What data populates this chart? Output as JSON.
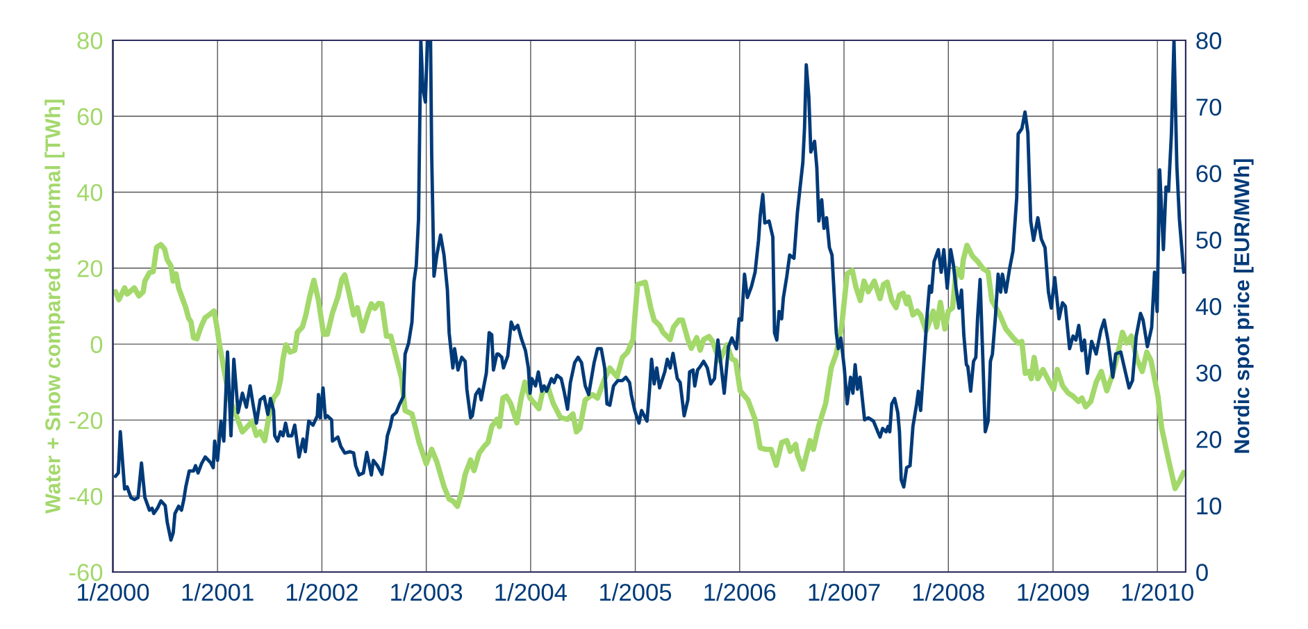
{
  "chart_data": {
    "type": "line",
    "ylabel": "Water + Snow compared to normal [TWh]",
    "y2label": "Nordic spot price [EUR/MWh]",
    "xlim": [
      "2000-01-01",
      "2010-04-10"
    ],
    "xticks": [
      {
        "value": "2000-01-01",
        "label": "1/2000"
      },
      {
        "value": "2001-01-01",
        "label": "1/2001"
      },
      {
        "value": "2002-01-01",
        "label": "1/2002"
      },
      {
        "value": "2003-01-01",
        "label": "1/2003"
      },
      {
        "value": "2004-01-01",
        "label": "1/2004"
      },
      {
        "value": "2005-01-01",
        "label": "1/2005"
      },
      {
        "value": "2006-01-01",
        "label": "1/2006"
      },
      {
        "value": "2007-01-01",
        "label": "1/2007"
      },
      {
        "value": "2008-01-01",
        "label": "1/2008"
      },
      {
        "value": "2009-01-01",
        "label": "1/2009"
      },
      {
        "value": "2010-01-01",
        "label": "1/2010"
      }
    ],
    "ylim": [
      -60,
      80
    ],
    "yticks": [
      -60,
      -40,
      -20,
      0,
      20,
      40,
      60,
      80
    ],
    "y2lim": [
      0,
      80
    ],
    "y2ticks": [
      0,
      10,
      20,
      30,
      40,
      50,
      60,
      70,
      80
    ],
    "grid": true,
    "series": [
      {
        "color": "#a3d86b",
        "axis": "y",
        "x": [
          "2000-01-10",
          "2000-01-22",
          "2000-02-11",
          "2000-02-20",
          "2000-03-16",
          "2000-04-01",
          "2000-04-16",
          "2000-04-22",
          "2000-05-08",
          "2000-05-21",
          "2000-06-02",
          "2000-06-17",
          "2000-06-30",
          "2000-07-09",
          "2000-07-22",
          "2000-07-30",
          "2000-08-09",
          "2000-08-18",
          "2000-09-12",
          "2000-09-22",
          "2000-09-30",
          "2000-10-09",
          "2000-10-21",
          "2000-11-06",
          "2000-11-19",
          "2000-12-01",
          "2000-12-20",
          "2000-12-29",
          "2001-01-07",
          "2001-01-26",
          "2001-02-13",
          "2001-03-10",
          "2001-03-29",
          "2001-04-16",
          "2001-05-02",
          "2001-05-17",
          "2001-05-30",
          "2001-06-15",
          "2001-06-30",
          "2001-07-16",
          "2001-07-30",
          "2001-08-09",
          "2001-08-18",
          "2001-08-28",
          "2001-09-12",
          "2001-09-28",
          "2001-10-07",
          "2001-10-25",
          "2001-11-06",
          "2001-11-19",
          "2001-12-04",
          "2001-12-20",
          "2002-01-07",
          "2002-01-20",
          "2002-02-07",
          "2002-02-26",
          "2002-03-12",
          "2002-03-22",
          "2002-04-06",
          "2002-04-22",
          "2002-05-05",
          "2002-05-23",
          "2002-06-11",
          "2002-06-23",
          "2002-07-05",
          "2002-07-18",
          "2002-07-30",
          "2002-08-15",
          "2002-08-30",
          "2002-09-18",
          "2002-10-07",
          "2002-10-19",
          "2002-11-12",
          "2002-12-07",
          "2003-01-01",
          "2003-01-20",
          "2003-02-07",
          "2003-03-04",
          "2003-03-22",
          "2003-04-04",
          "2003-04-20",
          "2003-05-05",
          "2003-05-17",
          "2003-06-05",
          "2003-06-17",
          "2003-07-05",
          "2003-07-24",
          "2003-08-05",
          "2003-08-18",
          "2003-09-05",
          "2003-09-14",
          "2003-09-26",
          "2003-10-08",
          "2003-10-23",
          "2003-11-14",
          "2003-11-29",
          "2003-12-12",
          "2003-12-30",
          "2004-01-30",
          "2004-02-11",
          "2004-03-02",
          "2004-03-20",
          "2004-04-14",
          "2004-05-09",
          "2004-05-28",
          "2004-06-09",
          "2004-06-21",
          "2004-07-10",
          "2004-08-04",
          "2004-08-22",
          "2004-09-16",
          "2004-10-04",
          "2004-10-29",
          "2004-11-17",
          "2004-12-05",
          "2004-12-24",
          "2005-01-09",
          "2005-02-05",
          "2005-02-24",
          "2005-03-08",
          "2005-03-27",
          "2005-04-08",
          "2005-05-03",
          "2005-05-15",
          "2005-06-03",
          "2005-06-15",
          "2005-07-04",
          "2005-07-16",
          "2005-08-04",
          "2005-08-16",
          "2005-08-28",
          "2005-09-16",
          "2005-09-28",
          "2005-10-23",
          "2005-11-17",
          "2005-12-05",
          "2005-12-18",
          "2006-01-03",
          "2006-01-30",
          "2006-02-24",
          "2006-03-14",
          "2006-04-02",
          "2006-04-21",
          "2006-05-09",
          "2006-05-28",
          "2006-06-15",
          "2006-06-27",
          "2006-07-16",
          "2006-07-22",
          "2006-08-10",
          "2006-09-04",
          "2006-09-16",
          "2006-10-04",
          "2006-10-29",
          "2006-11-17",
          "2006-12-05",
          "2006-12-24",
          "2007-01-12",
          "2007-01-30",
          "2007-02-11",
          "2007-02-27",
          "2007-03-12",
          "2007-03-27",
          "2007-04-17",
          "2007-05-07",
          "2007-05-19",
          "2007-06-01",
          "2007-06-17",
          "2007-07-02",
          "2007-07-14",
          "2007-07-27",
          "2007-08-08",
          "2007-08-14",
          "2007-08-30",
          "2007-09-14",
          "2007-09-26",
          "2007-10-15",
          "2007-10-27",
          "2007-11-09",
          "2007-11-21",
          "2007-12-04",
          "2007-12-20",
          "2008-01-01",
          "2008-01-16",
          "2008-01-28",
          "2008-02-16",
          "2008-02-22",
          "2008-03-06",
          "2008-03-25",
          "2008-04-12",
          "2008-05-01",
          "2008-05-19",
          "2008-06-01",
          "2008-06-26",
          "2008-07-20",
          "2008-08-14",
          "2008-09-01",
          "2008-09-14",
          "2008-09-26",
          "2008-10-09",
          "2008-10-17",
          "2008-10-27",
          "2008-11-09",
          "2008-11-27",
          "2008-12-16",
          "2009-01-03",
          "2009-01-16",
          "2009-02-03",
          "2009-02-22",
          "2009-03-12",
          "2009-03-31",
          "2009-04-12",
          "2009-04-25",
          "2009-05-13",
          "2009-06-01",
          "2009-06-19",
          "2009-07-08",
          "2009-07-27",
          "2009-08-14",
          "2009-09-01",
          "2009-09-16",
          "2009-10-02",
          "2009-10-21",
          "2009-11-09",
          "2009-11-25",
          "2009-12-10",
          "2010-01-03",
          "2010-01-16",
          "2010-02-09",
          "2010-03-04",
          "2010-03-19",
          "2010-04-03"
        ],
        "values": [
          13.8,
          11.7,
          14.8,
          13.2,
          14.8,
          12.7,
          13.8,
          16.6,
          18.8,
          19.1,
          25.5,
          26.2,
          25.0,
          22.2,
          20.6,
          16.6,
          18.5,
          14.8,
          9.6,
          6.8,
          5.9,
          1.7,
          1.4,
          4.9,
          7.0,
          7.6,
          8.7,
          4.9,
          0.3,
          -7.7,
          -14.7,
          -19.3,
          -23.1,
          -21.7,
          -20.3,
          -24.0,
          -23.1,
          -25.4,
          -18.9,
          -14.2,
          -12.8,
          -9.5,
          -3.9,
          -0.2,
          -2.1,
          -1.6,
          3.1,
          4.5,
          7.7,
          12.4,
          16.8,
          11.5,
          2.6,
          2.6,
          8.2,
          12.4,
          17.1,
          18.2,
          13.4,
          7.7,
          9.6,
          3.5,
          8.2,
          10.6,
          9.4,
          10.7,
          10.6,
          2.1,
          2.1,
          -3.5,
          -9.1,
          -17.5,
          -18.4,
          -25.9,
          -31.5,
          -27.7,
          -31.0,
          -37.5,
          -40.8,
          -41.3,
          -42.7,
          -38.9,
          -34.3,
          -30.5,
          -33.3,
          -28.7,
          -26.8,
          -25.9,
          -21.7,
          -19.8,
          -21.7,
          -14.2,
          -13.7,
          -15.6,
          -20.7,
          -14.2,
          -10.0,
          -14.2,
          -17.0,
          -12.8,
          -11.4,
          -15.6,
          -19.3,
          -19.8,
          -18.4,
          -23.1,
          -22.2,
          -14.7,
          -13.3,
          -14.2,
          -9.1,
          -6.3,
          -8.6,
          -3.5,
          -2.1,
          1.2,
          15.7,
          16.3,
          9.6,
          6.3,
          4.9,
          3.1,
          1.2,
          4.5,
          6.3,
          6.3,
          1.2,
          -1.1,
          1.7,
          -1.6,
          1.2,
          2.0,
          0.7,
          -4.4,
          -0.2,
          -3.9,
          -4.4,
          -12.3,
          -14.7,
          -19.8,
          -27.3,
          -27.7,
          -27.7,
          -31.9,
          -25.9,
          -25.4,
          -28.2,
          -26.4,
          -29.1,
          -32.9,
          -25.4,
          -27.7,
          -21.7,
          -15.6,
          -6.3,
          -2.5,
          4.9,
          18.5,
          19.4,
          15.2,
          11.5,
          16.6,
          13.8,
          16.6,
          12.0,
          15.7,
          16.3,
          11.5,
          9.6,
          12.9,
          13.4,
          10.6,
          12.4,
          7.7,
          8.7,
          7.7,
          3.5,
          5.9,
          8.7,
          4.5,
          11.0,
          4.0,
          8.7,
          9.6,
          19.9,
          17.6,
          22.2,
          26.0,
          23.2,
          21.8,
          19.9,
          19.0,
          11.5,
          8.2,
          4.0,
          1.7,
          0.3,
          0.7,
          -7.7,
          -7.2,
          -9.1,
          -3.5,
          -9.1,
          -6.7,
          -9.5,
          -11.9,
          -6.7,
          -10.9,
          -12.8,
          -13.7,
          -15.1,
          -14.2,
          -16.5,
          -15.1,
          -10.0,
          -7.2,
          -12.3,
          -8.2,
          -3.0,
          3.1,
          0.3,
          2.1,
          -3.9,
          -7.2,
          -2.1,
          -4.4,
          -13.7,
          -22.1,
          -30.5,
          -38.0,
          -36.1,
          -33.8
        ]
      },
      {
        "color": "#003a78",
        "axis": "y2",
        "x": [
          "2000-01-10",
          "2000-01-20",
          "2000-01-27",
          "2000-02-11",
          "2000-02-20",
          "2000-03-04",
          "2000-03-16",
          "2000-03-29",
          "2000-04-10",
          "2000-04-22",
          "2000-05-08",
          "2000-05-17",
          "2000-05-23",
          "2000-06-05",
          "2000-06-17",
          "2000-07-02",
          "2000-07-09",
          "2000-07-22",
          "2000-07-30",
          "2000-08-05",
          "2000-08-18",
          "2000-08-28",
          "2000-09-05",
          "2000-09-12",
          "2000-09-24",
          "2000-10-09",
          "2000-10-16",
          "2000-10-25",
          "2000-11-06",
          "2000-11-19",
          "2000-12-07",
          "2000-12-17",
          "2000-12-22",
          "2001-01-01",
          "2001-01-13",
          "2001-01-23",
          "2001-02-05",
          "2001-02-17",
          "2001-02-27",
          "2001-03-14",
          "2001-03-29",
          "2001-04-12",
          "2001-04-25",
          "2001-05-05",
          "2001-05-17",
          "2001-05-30",
          "2001-06-13",
          "2001-06-26",
          "2001-07-05",
          "2001-07-16",
          "2001-07-20",
          "2001-07-30",
          "2001-08-09",
          "2001-08-18",
          "2001-08-27",
          "2001-09-05",
          "2001-09-18",
          "2001-09-28",
          "2001-10-13",
          "2001-10-27",
          "2001-11-04",
          "2001-11-16",
          "2001-12-01",
          "2001-12-16",
          "2001-12-20",
          "2001-12-26",
          "2002-01-05",
          "2002-01-13",
          "2002-01-20",
          "2002-02-04",
          "2002-02-07",
          "2002-02-26",
          "2002-03-08",
          "2002-03-22",
          "2002-04-10",
          "2002-04-22",
          "2002-04-29",
          "2002-05-11",
          "2002-05-26",
          "2002-06-07",
          "2002-06-23",
          "2002-06-30",
          "2002-07-14",
          "2002-07-30",
          "2002-08-12",
          "2002-08-18",
          "2002-08-28",
          "2002-09-05",
          "2002-09-18",
          "2002-09-30",
          "2002-10-13",
          "2002-10-19",
          "2002-10-31",
          "2002-11-12",
          "2002-11-19",
          "2002-11-27",
          "2002-12-05",
          "2002-12-13",
          "2002-12-20",
          "2002-12-29",
          "2003-01-05",
          "2003-01-16",
          "2003-01-20",
          "2003-01-28",
          "2003-02-07",
          "2003-02-20",
          "2003-03-04",
          "2003-03-16",
          "2003-03-22",
          "2003-04-04",
          "2003-04-10",
          "2003-04-22",
          "2003-05-05",
          "2003-05-17",
          "2003-05-23",
          "2003-06-05",
          "2003-06-11",
          "2003-06-23",
          "2003-07-05",
          "2003-07-12",
          "2003-07-30",
          "2003-08-09",
          "2003-08-18",
          "2003-08-24",
          "2003-09-05",
          "2003-09-10",
          "2003-09-22",
          "2003-09-28",
          "2003-10-13",
          "2003-10-25",
          "2003-11-04",
          "2003-11-17",
          "2003-11-29",
          "2003-12-14",
          "2003-12-24",
          "2003-12-30",
          "2004-01-05",
          "2004-01-18",
          "2004-01-28",
          "2004-02-09",
          "2004-02-17",
          "2004-02-26",
          "2004-03-14",
          "2004-03-23",
          "2004-04-02",
          "2004-04-17",
          "2004-04-27",
          "2004-05-09",
          "2004-05-19",
          "2004-06-03",
          "2004-06-15",
          "2004-06-27",
          "2004-07-10",
          "2004-07-22",
          "2004-08-10",
          "2004-08-22",
          "2004-09-04",
          "2004-09-16",
          "2004-09-24",
          "2004-10-04",
          "2004-10-17",
          "2004-11-01",
          "2004-11-17",
          "2004-11-29",
          "2004-12-12",
          "2004-12-18",
          "2004-12-30",
          "2005-01-14",
          "2005-01-23",
          "2005-02-11",
          "2005-02-20",
          "2005-02-27",
          "2005-03-08",
          "2005-03-17",
          "2005-03-27",
          "2005-04-14",
          "2005-04-23",
          "2005-05-03",
          "2005-05-13",
          "2005-05-28",
          "2005-06-07",
          "2005-06-21",
          "2005-07-04",
          "2005-07-10",
          "2005-07-22",
          "2005-07-28",
          "2005-08-07",
          "2005-08-16",
          "2005-08-28",
          "2005-09-10",
          "2005-09-22",
          "2005-10-05",
          "2005-10-17",
          "2005-10-29",
          "2005-11-08",
          "2005-11-23",
          "2005-12-05",
          "2005-12-21",
          "2005-12-30",
          "2006-01-08",
          "2006-01-18",
          "2006-01-28",
          "2006-02-11",
          "2006-02-24",
          "2006-03-08",
          "2006-03-14",
          "2006-03-23",
          "2006-03-30",
          "2006-04-14",
          "2006-04-27",
          "2006-05-03",
          "2006-05-11",
          "2006-05-19",
          "2006-05-28",
          "2006-06-03",
          "2006-06-15",
          "2006-06-25",
          "2006-07-10",
          "2006-07-22",
          "2006-07-30",
          "2006-08-10",
          "2006-08-16",
          "2006-08-22",
          "2006-08-31",
          "2006-09-07",
          "2006-09-20",
          "2006-09-28",
          "2006-10-05",
          "2006-10-15",
          "2006-10-23",
          "2006-11-01",
          "2006-11-11",
          "2006-11-20",
          "2006-12-05",
          "2006-12-12",
          "2006-12-21",
          "2007-01-02",
          "2007-01-12",
          "2007-01-24",
          "2007-02-01",
          "2007-02-09",
          "2007-02-17",
          "2007-02-26",
          "2007-03-14",
          "2007-03-27",
          "2007-04-14",
          "2007-04-29",
          "2007-05-07",
          "2007-05-16",
          "2007-05-28",
          "2007-06-04",
          "2007-06-10",
          "2007-06-17",
          "2007-06-27",
          "2007-07-08",
          "2007-07-14",
          "2007-07-20",
          "2007-07-29",
          "2007-08-08",
          "2007-08-20",
          "2007-08-30",
          "2007-09-12",
          "2007-09-18",
          "2007-09-26",
          "2007-10-09",
          "2007-10-19",
          "2007-10-27",
          "2007-11-03",
          "2007-11-12",
          "2007-11-27",
          "2007-12-07",
          "2007-12-16",
          "2007-12-28",
          "2008-01-09",
          "2008-01-18",
          "2008-01-28",
          "2008-02-07",
          "2008-02-16",
          "2008-02-24",
          "2008-03-04",
          "2008-03-09",
          "2008-03-19",
          "2008-03-29",
          "2008-04-06",
          "2008-04-12",
          "2008-04-21",
          "2008-05-01",
          "2008-05-09",
          "2008-05-19",
          "2008-05-27",
          "2008-06-03",
          "2008-06-13",
          "2008-06-23",
          "2008-07-02",
          "2008-07-08",
          "2008-07-20",
          "2008-08-02",
          "2008-08-14",
          "2008-08-27",
          "2008-09-01",
          "2008-09-14",
          "2008-09-25",
          "2008-10-05",
          "2008-10-15",
          "2008-10-25",
          "2008-11-09",
          "2008-11-21",
          "2008-12-04",
          "2008-12-16",
          "2008-12-26",
          "2009-01-07",
          "2009-01-22",
          "2009-02-03",
          "2009-02-13",
          "2009-02-28",
          "2009-03-12",
          "2009-03-22",
          "2009-04-01",
          "2009-04-12",
          "2009-04-21",
          "2009-05-01",
          "2009-05-16",
          "2009-06-01",
          "2009-06-17",
          "2009-06-29",
          "2009-07-12",
          "2009-07-29",
          "2009-08-08",
          "2009-08-26",
          "2009-09-12",
          "2009-09-24",
          "2009-10-06",
          "2009-10-19",
          "2009-11-03",
          "2009-11-12",
          "2009-11-27",
          "2009-12-12",
          "2009-12-22",
          "2009-12-31",
          "2010-01-09",
          "2010-01-22",
          "2010-01-31",
          "2010-02-09",
          "2010-02-19",
          "2010-02-28",
          "2010-03-10",
          "2010-03-19",
          "2010-04-03"
        ],
        "values": [
          14.4,
          14.9,
          21.1,
          12.5,
          12.8,
          11.2,
          10.9,
          11.2,
          16.4,
          11.2,
          9.3,
          9.6,
          8.8,
          9.6,
          10.7,
          10.0,
          7.5,
          4.8,
          5.9,
          8.8,
          9.9,
          9.3,
          10.9,
          12.8,
          15.2,
          15.2,
          16.0,
          14.9,
          16.3,
          17.3,
          16.5,
          15.7,
          19.7,
          16.8,
          22.7,
          19.7,
          33.1,
          20.5,
          32.0,
          24.0,
          26.9,
          24.8,
          28.0,
          25.3,
          22.4,
          25.9,
          26.4,
          23.7,
          26.1,
          24.3,
          20.5,
          19.7,
          21.1,
          20.5,
          22.4,
          20.5,
          20.5,
          22.1,
          17.3,
          20.0,
          18.1,
          22.7,
          22.1,
          23.5,
          26.7,
          23.2,
          27.7,
          23.2,
          23.5,
          22.9,
          19.7,
          20.3,
          18.9,
          17.9,
          18.1,
          17.9,
          16.0,
          14.6,
          14.9,
          18.0,
          14.6,
          16.8,
          16.0,
          14.7,
          18.4,
          20.5,
          21.9,
          23.5,
          24.0,
          25.3,
          26.4,
          32.8,
          34.4,
          37.6,
          43.7,
          46.1,
          53.1,
          80,
          72.8,
          70.7,
          80,
          80,
          62.7,
          44.5,
          47.7,
          50.7,
          47.7,
          42.4,
          36.0,
          30.7,
          33.6,
          30.4,
          32.3,
          31.7,
          27.5,
          23.2,
          23.5,
          26.7,
          27.5,
          25.9,
          29.9,
          36.0,
          35.7,
          30.4,
          32.8,
          32.8,
          32.3,
          30.7,
          32.5,
          37.6,
          36.5,
          37.1,
          35.2,
          33.3,
          30.7,
          26.9,
          29.1,
          28.0,
          30.1,
          27.2,
          28.0,
          27.2,
          29.1,
          28.5,
          29.6,
          29.1,
          27.2,
          24.5,
          28.5,
          31.5,
          32.3,
          31.5,
          28.0,
          26.7,
          31.5,
          33.6,
          33.6,
          30.7,
          25.3,
          25.1,
          28.0,
          28.8,
          28.8,
          29.3,
          28.5,
          26.7,
          24.3,
          22.4,
          24.3,
          22.7,
          27.5,
          32.0,
          28.3,
          30.7,
          27.7,
          30.1,
          32.0,
          30.7,
          32.9,
          29.1,
          28.5,
          23.5,
          25.9,
          30.1,
          30.4,
          28.0,
          30.4,
          30.9,
          31.7,
          30.7,
          28.3,
          29.1,
          34.9,
          30.7,
          26.9,
          33.9,
          35.2,
          33.6,
          38.1,
          37.9,
          44.8,
          41.3,
          42.9,
          45.1,
          49.9,
          53.6,
          56.8,
          52.5,
          52.8,
          50.4,
          36.0,
          34.9,
          39.2,
          38.1,
          41.3,
          44.5,
          47.7,
          47.2,
          54.1,
          57.3,
          61.6,
          66.9,
          76.3,
          71.5,
          63.2,
          64.8,
          60.8,
          52.8,
          56.0,
          51.7,
          53.3,
          48.8,
          47.7,
          36.0,
          33.6,
          35.2,
          30.7,
          25.3,
          29.3,
          26.9,
          31.2,
          27.5,
          29.3,
          22.9,
          23.2,
          22.7,
          21.1,
          20.3,
          21.6,
          21.1,
          21.9,
          21.1,
          25.3,
          26.1,
          24.0,
          21.1,
          13.9,
          12.8,
          15.7,
          16.0,
          21.9,
          25.3,
          27.2,
          24.3,
          32.5,
          38.9,
          43.0,
          42.1,
          46.7,
          48.5,
          45.1,
          48.5,
          42.7,
          48.5,
          46.4,
          42.7,
          39.7,
          42.4,
          35.7,
          31.2,
          30.9,
          27.2,
          31.7,
          32.3,
          38.1,
          44.0,
          31.5,
          21.1,
          22.7,
          31.7,
          32.8,
          38.1,
          44.8,
          42.1,
          44.8,
          42.1,
          45.6,
          48.3,
          56.3,
          65.9,
          66.7,
          69.2,
          66.1,
          52.8,
          49.9,
          53.3,
          50.1,
          48.8,
          42.1,
          39.7,
          44.3,
          38.1,
          40.5,
          40.0,
          33.6,
          35.5,
          34.9,
          37.1,
          33.3,
          34.9,
          29.9,
          34.7,
          32.8,
          36.3,
          37.9,
          34.9,
          29.3,
          32.8,
          33.1,
          29.9,
          27.7,
          28.8,
          35.5,
          38.9,
          37.9,
          33.9,
          36.8,
          45.1,
          39.2,
          60.5,
          48.5,
          57.9,
          57.3,
          65.9,
          80,
          61.1,
          53.1,
          45.1
        ]
      }
    ]
  }
}
